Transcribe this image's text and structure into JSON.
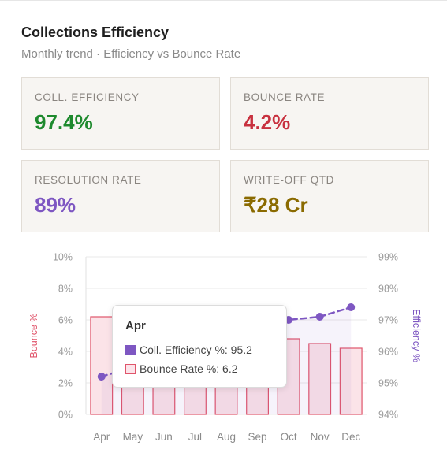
{
  "header": {
    "title": "Collections Efficiency",
    "subtitle": "Monthly trend · Efficiency vs Bounce Rate"
  },
  "kpis": [
    {
      "label": "COLL. EFFICIENCY",
      "value": "97.4%",
      "color": "#1e8a2e"
    },
    {
      "label": "BOUNCE RATE",
      "value": "4.2%",
      "color": "#c8313f"
    },
    {
      "label": "RESOLUTION RATE",
      "value": "89%",
      "color": "#7e57c2"
    },
    {
      "label": "WRITE-OFF QTD",
      "value": "₹28 Cr",
      "color": "#8a6a00"
    }
  ],
  "chart_data": {
    "type": "bar",
    "categories": [
      "Apr",
      "May",
      "Jun",
      "Jul",
      "Aug",
      "Sep",
      "Oct",
      "Nov",
      "Dec"
    ],
    "series": [
      {
        "name": "Bounce Rate %",
        "axis": "left",
        "type": "bar",
        "color": "#e0556b",
        "values": [
          6.2,
          5.8,
          5.6,
          5.3,
          5.1,
          4.9,
          4.8,
          4.5,
          4.2
        ]
      },
      {
        "name": "Coll. Efficiency %",
        "axis": "right",
        "type": "line",
        "color": "#7e57c2",
        "values": [
          95.2,
          95.5,
          95.8,
          96.1,
          96.5,
          96.8,
          97.0,
          97.1,
          97.4
        ]
      }
    ],
    "ylabel": "Bounce %",
    "y2label": "Efficiency %",
    "ylim": [
      0,
      10
    ],
    "y2lim": [
      94,
      99
    ],
    "yticks": [
      "0%",
      "2%",
      "4%",
      "6%",
      "8%",
      "10%"
    ],
    "y2ticks": [
      "94%",
      "95%",
      "96%",
      "97%",
      "98%",
      "99%"
    ],
    "grid": true,
    "tooltip": {
      "title": "Apr",
      "efficiency_text": "Coll. Efficiency %: 95.2",
      "bounce_text": "Bounce Rate %: 6.2"
    }
  }
}
